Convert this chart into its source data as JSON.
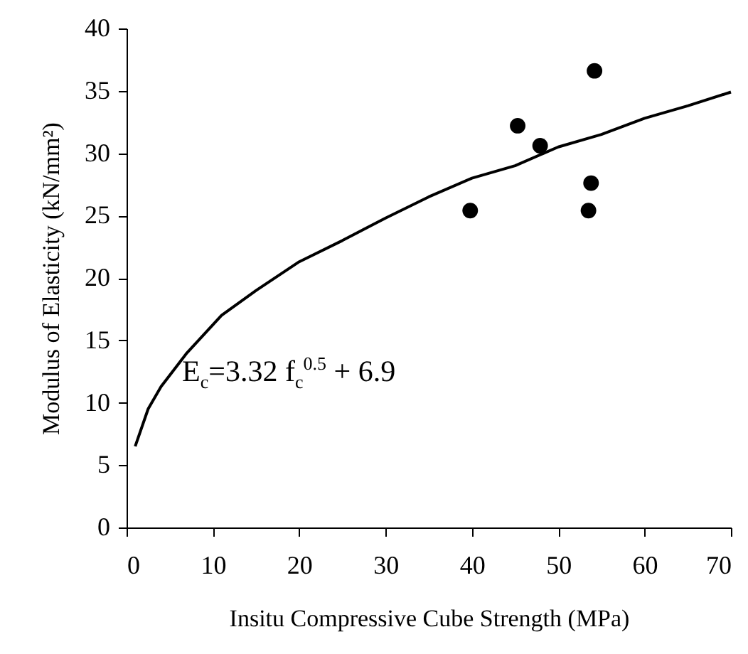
{
  "chart_data": {
    "type": "scatter",
    "xlabel": "Insitu Compressive Cube Strength (MPa)",
    "ylabel": "Modulus of Elasticity (kN/mm²)",
    "annotations": [
      "E$_{c}$=3.32 f$_{c}$$^{0.5}$ + 6.9"
    ],
    "xlim": [
      0,
      70
    ],
    "xticks": [
      0,
      10,
      20,
      30,
      40,
      50,
      60,
      70
    ],
    "ylim": [
      0,
      40
    ],
    "yticks": [
      0,
      5,
      10,
      15,
      20,
      25,
      30,
      35,
      40
    ],
    "grid": false,
    "marker": "circle",
    "series": [
      {
        "color": "#000000",
        "x": [
          39.8,
          45.3,
          47.9,
          53.8,
          53.5,
          54.2
        ],
        "values": [
          25.4,
          32.2,
          30.6,
          27.6,
          25.4,
          36.6
        ]
      },
      {
        "type": "line",
        "marker": "none",
        "color": "#000000",
        "line_style": "solid",
        "x": [
          1,
          2.5,
          4,
          7,
          11,
          15,
          20,
          25,
          30,
          35,
          40,
          45,
          50,
          55,
          60,
          65,
          70
        ],
        "values": [
          6.5,
          9.5,
          11.3,
          14,
          17,
          19,
          21.3,
          23,
          24.8,
          26.5,
          28,
          29,
          30.5,
          31.5,
          32.8,
          33.8,
          34.9
        ]
      }
    ]
  }
}
